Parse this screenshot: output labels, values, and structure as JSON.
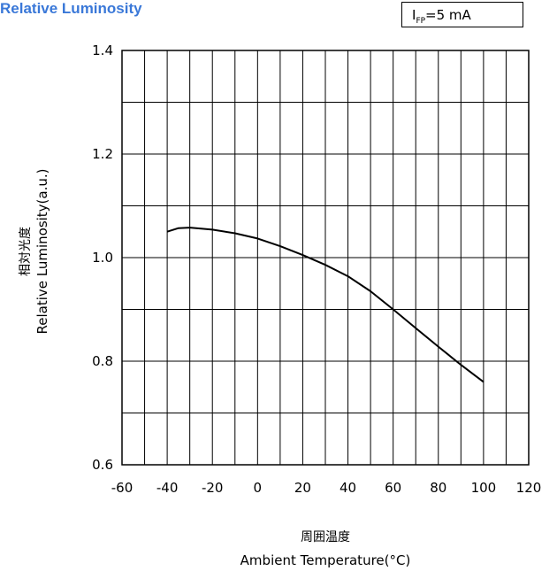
{
  "title": "Relative Luminosity",
  "condition": {
    "symbol": "I",
    "subscript": "FP",
    "value": "=5 mA"
  },
  "y_axis_label_jp": "相対光度",
  "y_axis_label_en": "Relative Luminosity(a.u.)",
  "x_axis_label_jp": "周囲温度",
  "x_axis_label_en": "Ambient Temperature(°C)",
  "colors": {
    "title": "#3a78d8",
    "curve": "#000000",
    "grid": "#000000"
  },
  "chart_data": {
    "type": "line",
    "title": "Relative Luminosity",
    "xlabel": "Ambient Temperature(°C)",
    "ylabel": "Relative Luminosity(a.u.)",
    "xlim": [
      -60,
      120
    ],
    "ylim": [
      0.6,
      1.4
    ],
    "x_ticks": [
      -60,
      -40,
      -20,
      0,
      20,
      40,
      60,
      80,
      100,
      120
    ],
    "x_tick_labels": [
      "-60",
      "-40",
      "-20",
      "0",
      "20",
      "40",
      "60",
      "80",
      "100",
      "120"
    ],
    "y_ticks": [
      0.6,
      0.8,
      1.0,
      1.2,
      1.4
    ],
    "y_tick_labels": [
      "0.6",
      "0.8",
      "1.0",
      "1.2",
      "1.4"
    ],
    "grid": true,
    "x_grid_step": 10,
    "y_grid_step": 0.1,
    "series": [
      {
        "x": [
          -40,
          -35,
          -30,
          -20,
          -10,
          0,
          10,
          20,
          30,
          40,
          50,
          60,
          70,
          80,
          90,
          100
        ],
        "y": [
          1.05,
          1.057,
          1.058,
          1.054,
          1.047,
          1.037,
          1.022,
          1.005,
          0.986,
          0.964,
          0.935,
          0.9,
          0.864,
          0.828,
          0.793,
          0.76
        ]
      }
    ]
  }
}
